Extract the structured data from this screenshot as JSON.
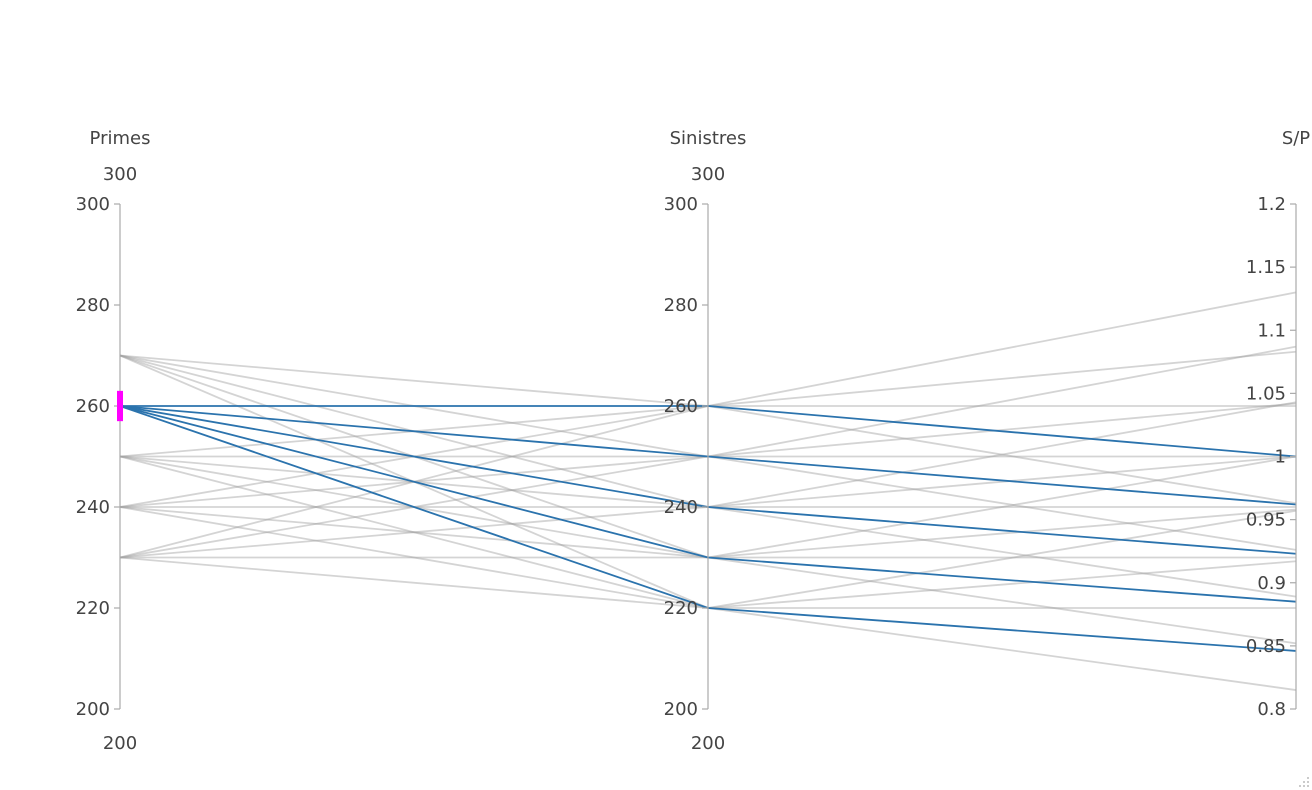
{
  "chart_data": {
    "type": "parallel_coordinates",
    "dimensions": [
      {
        "name": "Primes",
        "range": [
          200,
          300
        ],
        "range_labels": {
          "max": "300",
          "min": "200"
        },
        "ticks": [
          {
            "value": 300,
            "label": "300"
          },
          {
            "value": 280,
            "label": "280"
          },
          {
            "value": 260,
            "label": "260"
          },
          {
            "value": 240,
            "label": "240"
          },
          {
            "value": 220,
            "label": "220"
          },
          {
            "value": 200,
            "label": "200"
          }
        ],
        "constraint": [
          257,
          263
        ]
      },
      {
        "name": "Sinistres",
        "range": [
          200,
          300
        ],
        "range_labels": {
          "max": "300",
          "min": "200"
        },
        "ticks": [
          {
            "value": 300,
            "label": "300"
          },
          {
            "value": 280,
            "label": "280"
          },
          {
            "value": 260,
            "label": "260"
          },
          {
            "value": 240,
            "label": "240"
          },
          {
            "value": 220,
            "label": "220"
          },
          {
            "value": 200,
            "label": "200"
          }
        ]
      },
      {
        "name": "S/P",
        "range": [
          0.8,
          1.2
        ],
        "ticks": [
          {
            "value": 1.2,
            "label": "1.2"
          },
          {
            "value": 1.15,
            "label": "1.15"
          },
          {
            "value": 1.1,
            "label": "1.1"
          },
          {
            "value": 1.05,
            "label": "1.05"
          },
          {
            "value": 1,
            "label": "1"
          },
          {
            "value": 0.95,
            "label": "0.95"
          },
          {
            "value": 0.9,
            "label": "0.9"
          },
          {
            "value": 0.85,
            "label": "0.85"
          },
          {
            "value": 0.8,
            "label": "0.8"
          }
        ]
      }
    ],
    "lines": [
      [
        270,
        260,
        0.963
      ],
      [
        270,
        250,
        0.926
      ],
      [
        270,
        240,
        0.889
      ],
      [
        270,
        230,
        0.852
      ],
      [
        270,
        220,
        0.815
      ],
      [
        260,
        260,
        1.0
      ],
      [
        260,
        250,
        0.962
      ],
      [
        260,
        240,
        0.923
      ],
      [
        260,
        230,
        0.885
      ],
      [
        260,
        220,
        0.846
      ],
      [
        250,
        260,
        1.04
      ],
      [
        250,
        250,
        1.0
      ],
      [
        250,
        240,
        0.96
      ],
      [
        250,
        230,
        0.92
      ],
      [
        250,
        220,
        0.88
      ],
      [
        240,
        260,
        1.083
      ],
      [
        240,
        250,
        1.042
      ],
      [
        240,
        240,
        1.0
      ],
      [
        240,
        230,
        0.958
      ],
      [
        240,
        220,
        0.917
      ],
      [
        230,
        260,
        1.13
      ],
      [
        230,
        250,
        1.087
      ],
      [
        230,
        240,
        1.043
      ],
      [
        230,
        230,
        1.0
      ],
      [
        230,
        220,
        0.957
      ]
    ],
    "colors": {
      "selected": "#2b73ad",
      "unselected": "#b4b4b4",
      "brush": "#ff00ff",
      "axis": "#aaaaaa",
      "text": "#444444"
    }
  }
}
